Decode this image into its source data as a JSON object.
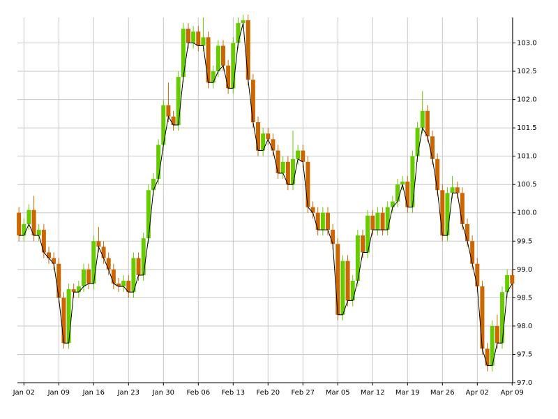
{
  "chart_data": {
    "type": "candlestick",
    "categories": [
      null,
      "Jan 02",
      null,
      null,
      null,
      null,
      null,
      null,
      "Jan 09",
      null,
      null,
      null,
      null,
      null,
      null,
      "Jan 16",
      null,
      null,
      null,
      null,
      null,
      null,
      "Jan 23",
      null,
      null,
      null,
      null,
      null,
      null,
      "Jan 30",
      null,
      null,
      null,
      null,
      null,
      null,
      "Feb 06",
      null,
      null,
      null,
      null,
      null,
      null,
      "Feb 13",
      null,
      null,
      null,
      null,
      null,
      null,
      "Feb 20",
      null,
      null,
      null,
      null,
      null,
      null,
      "Feb 27",
      null,
      null,
      null,
      null,
      null,
      null,
      "Mar 05",
      null,
      null,
      null,
      null,
      null,
      null,
      "Mar 12",
      null,
      null,
      null,
      null,
      null,
      null,
      "Mar 19",
      null,
      null,
      null,
      null,
      null,
      null,
      "Mar 26",
      null,
      null,
      null,
      null,
      null,
      null,
      "Apr 02",
      null,
      null,
      null,
      null,
      null,
      null,
      "Apr 09"
    ],
    "open": [
      100.0,
      99.6,
      99.8,
      100.05,
      99.6,
      99.7,
      99.3,
      99.2,
      99.1,
      98.5,
      97.7,
      98.65,
      98.6,
      98.7,
      99.0,
      98.75,
      99.5,
      99.4,
      99.2,
      99.0,
      98.75,
      98.7,
      98.8,
      98.6,
      99.2,
      98.9,
      99.55,
      100.4,
      100.6,
      101.2,
      101.9,
      101.7,
      101.55,
      102.4,
      103.25,
      103.0,
      103.2,
      102.95,
      103.1,
      102.3,
      102.5,
      102.95,
      102.6,
      102.2,
      103.0,
      103.35,
      103.4,
      102.35,
      101.6,
      101.1,
      101.4,
      101.3,
      101.1,
      100.7,
      100.9,
      100.5,
      100.95,
      101.1,
      100.9,
      100.1,
      100.0,
      99.7,
      100.0,
      99.7,
      99.45,
      98.2,
      99.15,
      98.45,
      98.8,
      99.6,
      99.3,
      99.95,
      99.7,
      100.0,
      99.7,
      100.1,
      100.2,
      100.5,
      100.55,
      100.1,
      101.0,
      101.5,
      101.8,
      101.35,
      100.95,
      100.4,
      99.6,
      100.35,
      100.45,
      100.35,
      99.8,
      99.5,
      99.1,
      98.7,
      97.6,
      97.3,
      98.0,
      97.7,
      98.6,
      98.9
    ],
    "close": [
      99.6,
      99.8,
      100.05,
      99.6,
      99.7,
      99.3,
      99.2,
      99.1,
      98.5,
      97.7,
      98.65,
      98.6,
      98.7,
      99.0,
      98.75,
      99.5,
      99.4,
      99.2,
      99.0,
      98.75,
      98.7,
      98.8,
      98.6,
      99.2,
      98.9,
      99.55,
      100.4,
      100.6,
      101.2,
      101.9,
      101.7,
      101.55,
      102.4,
      103.25,
      103.0,
      103.2,
      102.95,
      103.1,
      102.3,
      102.5,
      102.95,
      102.6,
      102.2,
      103.0,
      103.35,
      103.4,
      102.35,
      101.6,
      101.1,
      101.4,
      101.3,
      101.1,
      100.7,
      100.9,
      100.5,
      100.95,
      101.1,
      100.9,
      100.1,
      100.0,
      99.7,
      100.0,
      99.7,
      99.45,
      98.2,
      99.15,
      98.45,
      98.8,
      99.6,
      99.3,
      99.95,
      99.7,
      100.0,
      99.7,
      100.1,
      100.2,
      100.5,
      100.55,
      100.1,
      101.0,
      101.5,
      101.8,
      101.35,
      100.95,
      100.4,
      99.6,
      100.35,
      100.45,
      100.35,
      99.8,
      99.5,
      99.1,
      98.7,
      97.6,
      97.3,
      98.0,
      97.7,
      98.6,
      98.9,
      98.75
    ],
    "high": [
      100.1,
      99.9,
      100.15,
      100.3,
      99.8,
      99.8,
      99.4,
      99.3,
      99.2,
      98.6,
      98.75,
      98.75,
      98.8,
      99.1,
      99.1,
      99.6,
      99.75,
      99.5,
      99.3,
      99.1,
      98.85,
      98.9,
      98.9,
      99.3,
      99.3,
      99.65,
      100.5,
      100.7,
      101.3,
      102.0,
      102.3,
      101.8,
      102.5,
      103.35,
      103.35,
      103.3,
      103.3,
      103.45,
      103.2,
      102.6,
      103.05,
      103.05,
      102.7,
      103.1,
      103.45,
      103.5,
      103.5,
      102.45,
      101.7,
      101.5,
      101.5,
      101.4,
      101.2,
      101.0,
      101.0,
      101.45,
      101.2,
      101.2,
      101.0,
      100.2,
      100.1,
      100.1,
      100.1,
      99.8,
      99.55,
      99.25,
      99.25,
      98.9,
      99.7,
      99.7,
      100.05,
      100.05,
      100.1,
      100.1,
      100.2,
      100.3,
      100.6,
      100.65,
      100.65,
      101.1,
      101.6,
      102.15,
      101.9,
      101.45,
      101.05,
      100.5,
      100.45,
      100.65,
      100.55,
      100.45,
      99.9,
      99.6,
      99.2,
      98.8,
      97.7,
      98.1,
      98.2,
      98.7,
      99.0,
      99.0
    ],
    "low": [
      99.5,
      99.5,
      99.7,
      99.5,
      99.5,
      99.2,
      99.1,
      99.0,
      98.4,
      97.6,
      97.6,
      98.5,
      98.5,
      98.6,
      98.65,
      98.65,
      99.3,
      99.1,
      98.9,
      98.65,
      98.6,
      98.6,
      98.5,
      98.5,
      98.8,
      98.8,
      99.45,
      100.3,
      100.5,
      101.1,
      101.6,
      101.45,
      101.45,
      102.3,
      102.9,
      102.9,
      102.85,
      102.85,
      102.2,
      102.2,
      102.4,
      102.5,
      102.1,
      102.1,
      102.9,
      103.25,
      102.25,
      101.5,
      101.0,
      101.0,
      101.2,
      101.0,
      100.6,
      100.6,
      100.4,
      100.4,
      100.85,
      100.8,
      100.0,
      99.9,
      99.6,
      99.6,
      99.6,
      99.35,
      98.1,
      98.1,
      98.35,
      98.35,
      98.7,
      99.2,
      99.2,
      99.6,
      99.6,
      99.6,
      99.6,
      100.0,
      100.1,
      100.4,
      100.0,
      100.0,
      100.9,
      101.4,
      101.25,
      100.85,
      100.3,
      99.5,
      99.5,
      100.25,
      100.25,
      99.7,
      99.4,
      99.0,
      98.6,
      97.5,
      97.2,
      97.2,
      97.6,
      97.6,
      98.5,
      98.65
    ],
    "up_color": "#66cc00",
    "down_color": "#cc6600",
    "line": {
      "color": "#000000",
      "values": [
        99.6,
        99.6,
        99.8,
        99.6,
        99.6,
        99.3,
        99.2,
        99.1,
        98.5,
        97.7,
        97.7,
        98.6,
        98.6,
        98.7,
        98.75,
        98.75,
        99.4,
        99.2,
        99.0,
        98.75,
        98.7,
        98.7,
        98.6,
        98.6,
        98.9,
        98.9,
        99.55,
        100.4,
        100.6,
        101.2,
        101.7,
        101.55,
        101.55,
        102.4,
        103.0,
        103.0,
        102.95,
        102.95,
        102.3,
        102.3,
        102.5,
        102.6,
        102.2,
        102.2,
        103.0,
        103.35,
        102.35,
        101.6,
        101.1,
        101.1,
        101.3,
        101.1,
        100.7,
        100.7,
        100.5,
        100.5,
        100.95,
        100.9,
        100.1,
        100.0,
        99.7,
        99.7,
        99.7,
        99.45,
        98.2,
        98.2,
        98.45,
        98.45,
        98.8,
        99.3,
        99.3,
        99.7,
        99.7,
        99.7,
        99.7,
        100.1,
        100.2,
        100.5,
        100.1,
        100.1,
        101.0,
        101.5,
        101.35,
        100.95,
        100.4,
        99.6,
        99.6,
        100.35,
        100.35,
        99.8,
        99.5,
        99.1,
        98.7,
        97.6,
        97.3,
        97.3,
        97.7,
        97.7,
        98.6,
        98.75
      ]
    },
    "ylim": [
      97.0,
      103.45
    ],
    "yticks": [
      {
        "value": 97.0,
        "label": "97.0"
      },
      {
        "value": 97.5,
        "label": "97.5"
      },
      {
        "value": 98.0,
        "label": "98.0"
      },
      {
        "value": 98.5,
        "label": "98.5"
      },
      {
        "value": 99.0,
        "label": "99.0"
      },
      {
        "value": 99.5,
        "label": "99.5"
      },
      {
        "value": 100.0,
        "label": "100.0"
      },
      {
        "value": 100.5,
        "label": "100.5"
      },
      {
        "value": 101.0,
        "label": "101.0"
      },
      {
        "value": 101.5,
        "label": "101.5"
      },
      {
        "value": 102.0,
        "label": "102.0"
      },
      {
        "value": 102.5,
        "label": "102.5"
      },
      {
        "value": 103.0,
        "label": "103.0"
      }
    ],
    "grid": true
  }
}
